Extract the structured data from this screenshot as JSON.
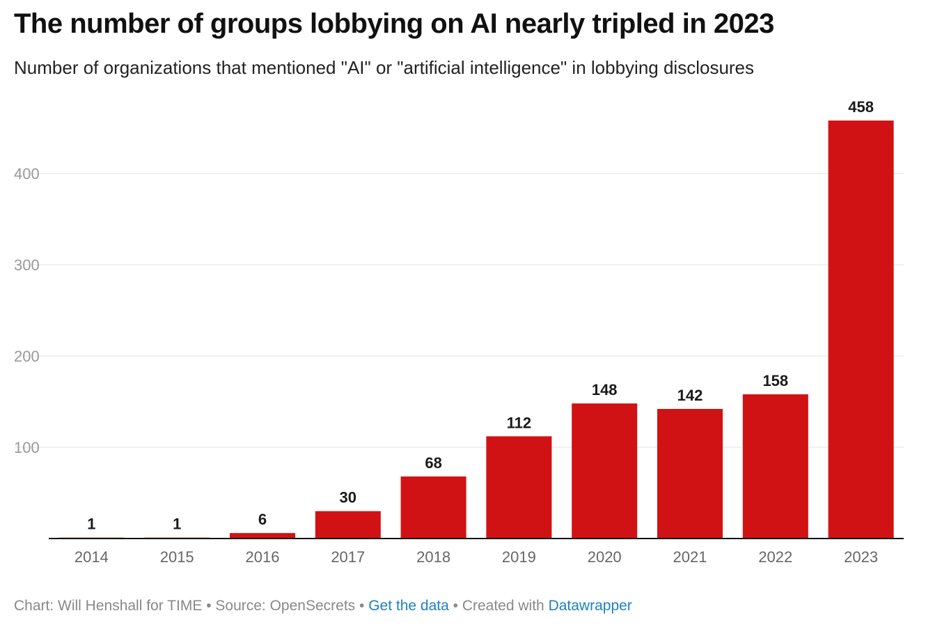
{
  "title": "The number of groups lobbying on AI nearly tripled in 2023",
  "subtitle": "Number of organizations that mentioned \"AI\" or \"artificial intelligence\" in lobbying disclosures",
  "chart_data": {
    "type": "bar",
    "title": "The number of groups lobbying on AI nearly tripled in 2023",
    "subtitle": "Number of organizations that mentioned \"AI\" or \"artificial intelligence\" in lobbying disclosures",
    "categories": [
      "2014",
      "2015",
      "2016",
      "2017",
      "2018",
      "2019",
      "2020",
      "2021",
      "2022",
      "2023"
    ],
    "values": [
      1,
      1,
      6,
      30,
      68,
      112,
      148,
      142,
      158,
      458
    ],
    "yticks": [
      100,
      200,
      300,
      400
    ],
    "ylim": [
      0,
      458
    ],
    "grid": true,
    "bar_color": "#d11214",
    "data_labels": true
  },
  "footer": {
    "credit": "Chart: Will Henshall for TIME",
    "sep1": " • ",
    "source": "Source: OpenSecrets",
    "sep2": " • ",
    "data_link": "Get the data",
    "sep3": " • ",
    "created": "Created with ",
    "dw_link": "Datawrapper"
  }
}
